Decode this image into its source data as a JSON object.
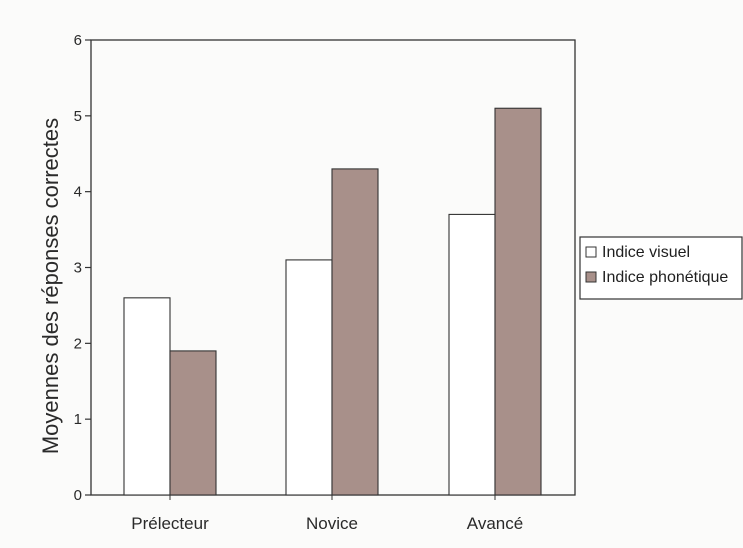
{
  "chart_data": {
    "type": "bar",
    "title": "",
    "xlabel": "",
    "ylabel": "Moyennes des réponses correctes",
    "categories": [
      "Prélecteur",
      "Novice",
      "Avancé"
    ],
    "series": [
      {
        "name": "Indice visuel",
        "values": [
          2.6,
          3.1,
          3.7
        ],
        "color": "#ffffff"
      },
      {
        "name": "Indice phonétique",
        "values": [
          1.9,
          4.3,
          5.1
        ],
        "color": "#a8908a"
      }
    ],
    "ylim": [
      0,
      6
    ],
    "yticks": [
      "0",
      "1",
      "2",
      "3",
      "4",
      "5",
      "6"
    ],
    "grid": false,
    "legend_position": "right"
  }
}
